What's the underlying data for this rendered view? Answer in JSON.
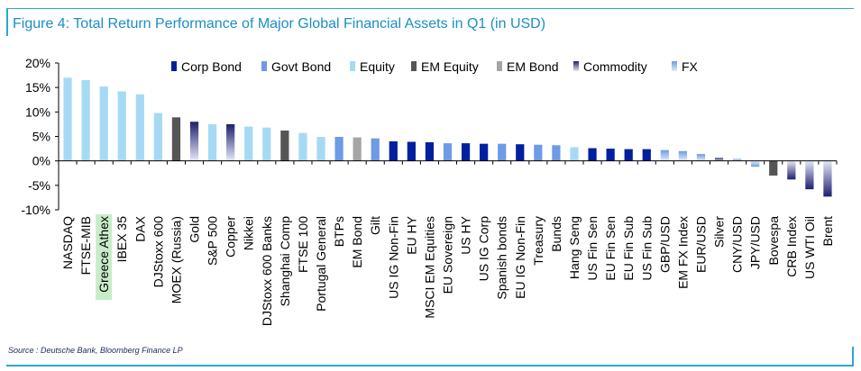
{
  "figure_title": "Figure 4: Total Return Performance of Major Global Financial Assets in Q1 (in USD)",
  "source": "Source : Deutsche Bank, Bloomberg Finance LP",
  "colors": {
    "Corp Bond": "#00209f",
    "Govt Bond": "#6f9ae6",
    "Equity": "#a6daf4",
    "EM Equity": "#555555",
    "EM Bond": "#a5a5a5",
    "Commodity": "#1d1f6e",
    "FX": "#8fb1ee",
    "highlight": "#c8ecc8",
    "frame": "#2aa7d8"
  },
  "chart_data": {
    "type": "bar",
    "title": "Figure 4: Total Return Performance of Major Global Financial Assets in Q1 (in USD)",
    "xlabel": "",
    "ylabel": "",
    "ylim": [
      -10,
      20
    ],
    "yticks": [
      "20%",
      "15%",
      "10%",
      "5%",
      "0%",
      "-5%",
      "-10%"
    ],
    "ytick_values": [
      20,
      15,
      10,
      5,
      0,
      -5,
      -10
    ],
    "legend": [
      "Corp Bond",
      "Govt Bond",
      "Equity",
      "EM Equity",
      "EM Bond",
      "Commodity",
      "FX"
    ],
    "legend_position": "top-right",
    "highlighted_category": "Greece Athex",
    "categories": [
      "NASDAQ",
      "FTSE-MIB",
      "Greece Athex",
      "IBEX 35",
      "DAX",
      "DJStoxx 600",
      "MOEX (Russia)",
      "Gold",
      "S&P 500",
      "Copper",
      "Nikkei",
      "DJStoxx 600 Banks",
      "Shanghai Comp",
      "FTSE 100",
      "Portugal General",
      "BTPs",
      "EM Bond",
      "Gilt",
      "US IG Non-Fin",
      "EU HY",
      "MSCI EM Equities",
      "EU Sovereign",
      "US HY",
      "US IG Corp",
      "Spanish bonds",
      "EU IG Non-Fin",
      "Treasury",
      "Bunds",
      "Hang Seng",
      "US Fin Sen",
      "EU Fin Sen",
      "EU Fin Sub",
      "US Fin Sub",
      "GBP/USD",
      "EM FX Index",
      "EUR/USD",
      "Silver",
      "CNY/USD",
      "JPY/USD",
      "Bovespa",
      "CRB Index",
      "US WTI Oil",
      "Brent"
    ],
    "values": [
      17.0,
      16.5,
      15.2,
      14.2,
      13.6,
      9.8,
      8.9,
      8.0,
      7.5,
      7.5,
      7.0,
      6.8,
      6.2,
      5.7,
      4.9,
      4.9,
      4.8,
      4.6,
      4.0,
      3.9,
      3.8,
      3.6,
      3.6,
      3.5,
      3.5,
      3.4,
      3.3,
      3.2,
      2.8,
      2.6,
      2.5,
      2.4,
      2.4,
      2.2,
      2.0,
      1.4,
      0.6,
      0.4,
      -1.2,
      -3.0,
      -3.8,
      -5.8,
      -7.3
    ],
    "groups": [
      "Equity",
      "Equity",
      "Equity",
      "Equity",
      "Equity",
      "Equity",
      "EM Equity",
      "Commodity",
      "Equity",
      "Commodity",
      "Equity",
      "Equity",
      "EM Equity",
      "Equity",
      "Equity",
      "Govt Bond",
      "EM Bond",
      "Govt Bond",
      "Corp Bond",
      "Corp Bond",
      "Corp Bond",
      "Govt Bond",
      "Corp Bond",
      "Corp Bond",
      "Govt Bond",
      "Corp Bond",
      "Govt Bond",
      "Govt Bond",
      "Equity",
      "Corp Bond",
      "Corp Bond",
      "Corp Bond",
      "Corp Bond",
      "FX",
      "FX",
      "FX",
      "Commodity",
      "FX",
      "FX",
      "EM Equity",
      "Commodity",
      "Commodity",
      "Commodity"
    ],
    "grid": false
  }
}
